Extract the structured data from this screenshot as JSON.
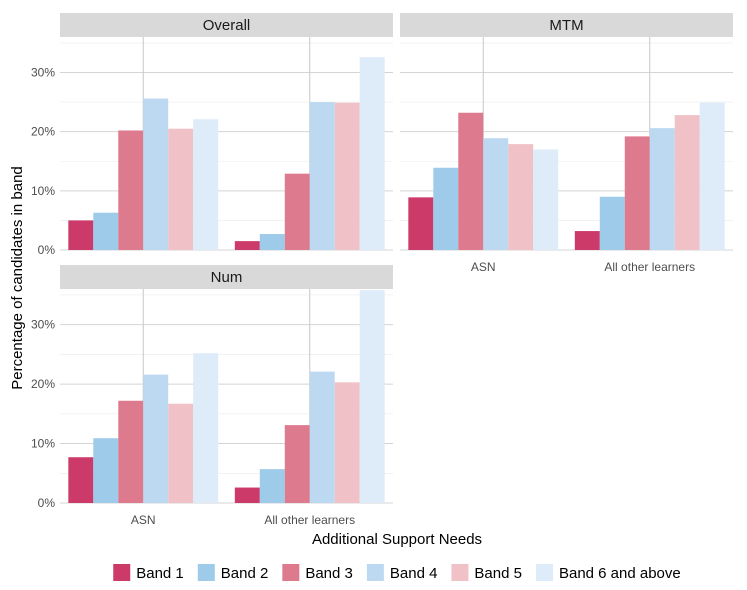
{
  "chart_data": {
    "type": "bar",
    "xlabel": "Additional Support Needs",
    "ylabel": "Percentage of candidates in band",
    "categories": [
      "ASN",
      "All other learners"
    ],
    "ylim": [
      0,
      0.36
    ],
    "yticks": [
      "0%",
      "10%",
      "20%",
      "30%"
    ],
    "legend_position": "bottom",
    "grid": true,
    "series_names": [
      "Band 1",
      "Band 2",
      "Band 3",
      "Band 4",
      "Band 5",
      "Band 6 and above"
    ],
    "series_colors": [
      "#cc3a6a",
      "#9ecbea",
      "#de7a8e",
      "#bcd9f1",
      "#f0c2c8",
      "#deebf8"
    ],
    "panels": [
      {
        "title": "Overall",
        "series": [
          {
            "name": "Band 1",
            "values": [
              0.05,
              0.015
            ]
          },
          {
            "name": "Band 2",
            "values": [
              0.063,
              0.027
            ]
          },
          {
            "name": "Band 3",
            "values": [
              0.202,
              0.129
            ]
          },
          {
            "name": "Band 4",
            "values": [
              0.256,
              0.25
            ]
          },
          {
            "name": "Band 5",
            "values": [
              0.205,
              0.249
            ]
          },
          {
            "name": "Band 6 and above",
            "values": [
              0.221,
              0.326
            ]
          }
        ]
      },
      {
        "title": "MTM",
        "series": [
          {
            "name": "Band 1",
            "values": [
              0.089,
              0.032
            ]
          },
          {
            "name": "Band 2",
            "values": [
              0.139,
              0.09
            ]
          },
          {
            "name": "Band 3",
            "values": [
              0.232,
              0.192
            ]
          },
          {
            "name": "Band 4",
            "values": [
              0.189,
              0.206
            ]
          },
          {
            "name": "Band 5",
            "values": [
              0.179,
              0.228
            ]
          },
          {
            "name": "Band 6 and above",
            "values": [
              0.17,
              0.249
            ]
          }
        ]
      },
      {
        "title": "Num",
        "series": [
          {
            "name": "Band 1",
            "values": [
              0.077,
              0.026
            ]
          },
          {
            "name": "Band 2",
            "values": [
              0.109,
              0.057
            ]
          },
          {
            "name": "Band 3",
            "values": [
              0.172,
              0.131
            ]
          },
          {
            "name": "Band 4",
            "values": [
              0.216,
              0.221
            ]
          },
          {
            "name": "Band 5",
            "values": [
              0.167,
              0.203
            ]
          },
          {
            "name": "Band 6 and above",
            "values": [
              0.252,
              0.358
            ]
          }
        ]
      }
    ]
  }
}
